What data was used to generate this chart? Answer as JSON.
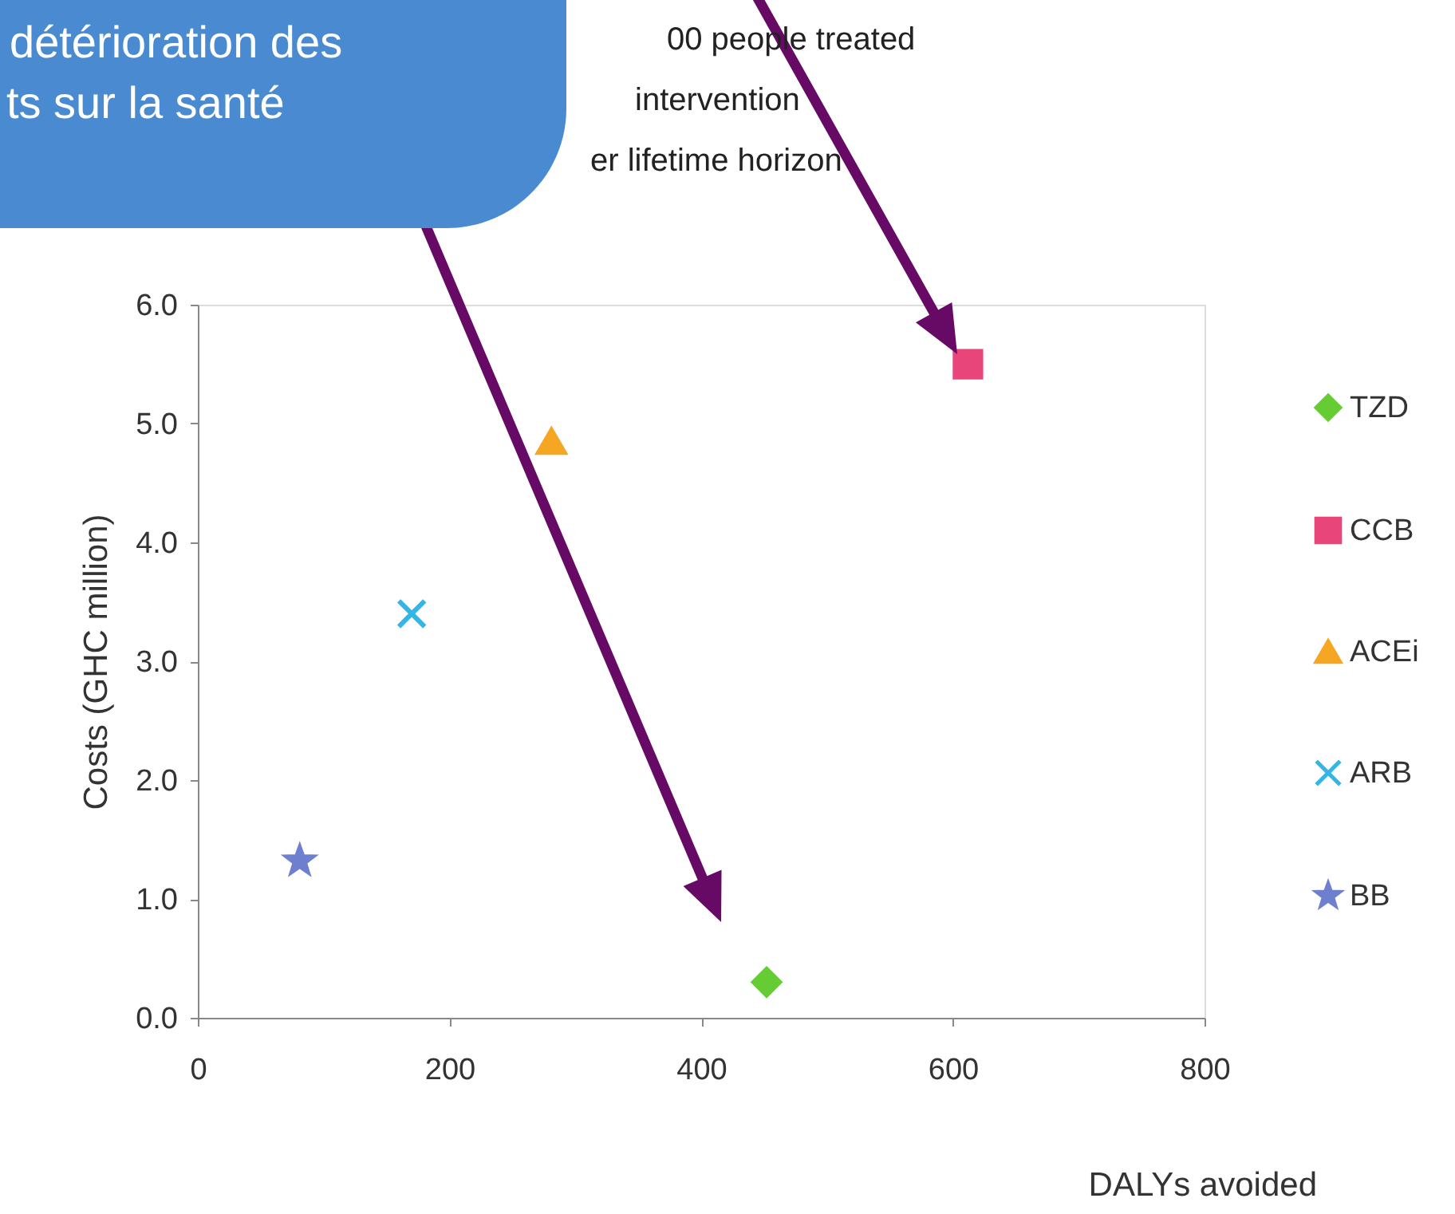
{
  "chart_data": {
    "type": "scatter",
    "xlabel": "DALYs avoided",
    "ylabel": "Costs (GHC million)",
    "xlim": [
      0,
      800
    ],
    "xticks": [
      0,
      200,
      400,
      600,
      800
    ],
    "ylim": [
      0,
      6
    ],
    "yticks": [
      {
        "value": 0,
        "label": "0.0"
      },
      {
        "value": 1,
        "label": "1.0"
      },
      {
        "value": 2,
        "label": "2.0"
      },
      {
        "value": 3,
        "label": "3.0"
      },
      {
        "value": 4,
        "label": "4.0"
      },
      {
        "value": 5,
        "label": "5.0"
      },
      {
        "value": 6,
        "label": "6.0"
      }
    ],
    "grid": false,
    "legend": "right",
    "series": [
      {
        "name": "TZD",
        "color": "#66cc33",
        "marker": "diamond",
        "x": [
          452
        ],
        "values": [
          0.3
        ]
      },
      {
        "name": "CCB",
        "color": "#e8457a",
        "marker": "square",
        "x": [
          612
        ],
        "values": [
          5.5
        ]
      },
      {
        "name": "ACEi",
        "color": "#f5a623",
        "marker": "triangle",
        "x": [
          281
        ],
        "values": [
          4.85
        ]
      },
      {
        "name": "ARB",
        "color": "#33b5e5",
        "marker": "cross",
        "x": [
          170
        ],
        "values": [
          3.4
        ]
      },
      {
        "name": "BB",
        "color": "#6f7fcf",
        "marker": "star",
        "x": [
          81
        ],
        "values": [
          1.32
        ]
      }
    ],
    "annotations": [
      "détérioration des",
      "ts sur la santé",
      "00 people treated",
      "intervention",
      "er lifetime horizon"
    ]
  }
}
